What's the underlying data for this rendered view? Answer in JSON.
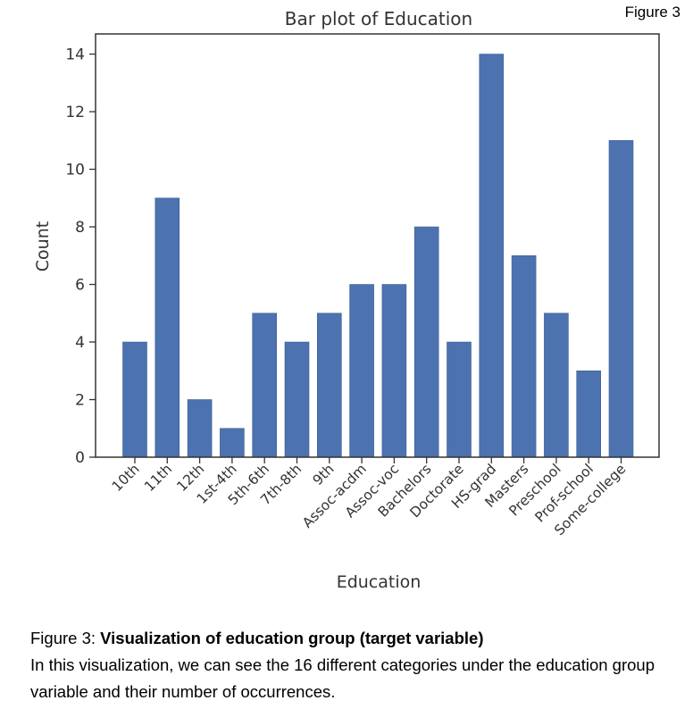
{
  "figure_tag": "Figure 3",
  "caption": {
    "prefix": "Figure 3: ",
    "title": "Visualization of education group (target variable)",
    "body": "In this visualization, we can see the 16 different categories under the education group variable and their number of occurrences."
  },
  "chart_data": {
    "type": "bar",
    "title": "Bar plot of Education",
    "xlabel": "Education",
    "ylabel": "Count",
    "categories": [
      "10th",
      "11th",
      "12th",
      "1st-4th",
      "5th-6th",
      "7th-8th",
      "9th",
      "Assoc-acdm",
      "Assoc-voc",
      "Bachelors",
      "Doctorate",
      "HS-grad",
      "Masters",
      "Preschool",
      "Prof-school",
      "Some-college"
    ],
    "values": [
      4,
      9,
      2,
      1,
      5,
      4,
      5,
      6,
      6,
      8,
      4,
      14,
      7,
      5,
      3,
      11
    ],
    "ylim": [
      0,
      14.7
    ],
    "yticks": [
      0,
      2,
      4,
      6,
      8,
      10,
      12,
      14
    ],
    "bar_color": "#4c72b0",
    "grid": false
  }
}
